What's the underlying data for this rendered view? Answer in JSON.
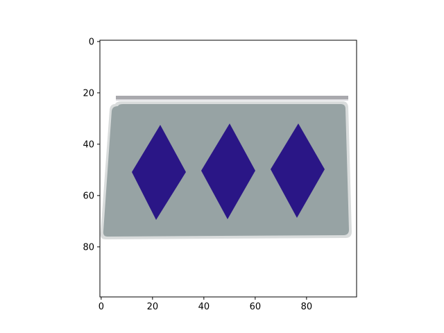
{
  "figure": {
    "x_ticks": [
      "0",
      "20",
      "40",
      "60",
      "80"
    ],
    "y_ticks": [
      "0",
      "20",
      "40",
      "60",
      "80"
    ],
    "x_tick_values": [
      0,
      20,
      40,
      60,
      80
    ],
    "y_tick_values": [
      0,
      20,
      40,
      60,
      80
    ],
    "x_range": [
      -0.5,
      99.5
    ],
    "y_range": [
      99.5,
      -0.5
    ]
  },
  "image": {
    "description": "",
    "colors": {
      "sign_face": "#97a3a4",
      "sign_edge": "#d9dcdc",
      "top_bar": "#a9a9ad",
      "diamond": "#2a1686",
      "frame": "#000000"
    },
    "diamond_count": 3
  }
}
